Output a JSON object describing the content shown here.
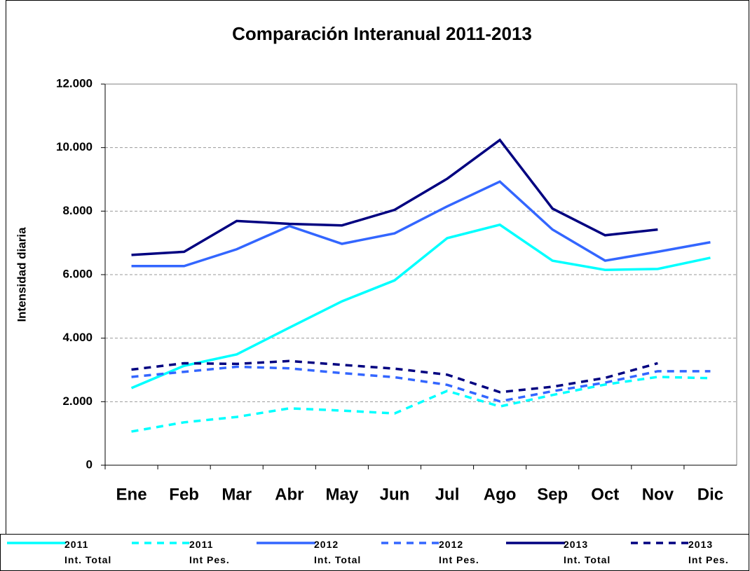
{
  "chart_data": {
    "type": "line",
    "title": "Comparación Interanual 2011-2013",
    "y_label": "Intensidad diaria",
    "categories": [
      "Ene",
      "Feb",
      "Mar",
      "Abr",
      "May",
      "Jun",
      "Jul",
      "Ago",
      "Sep",
      "Oct",
      "Nov",
      "Dic"
    ],
    "ylim": [
      0,
      12000
    ],
    "yticks": [
      0,
      {
        "value": 2000,
        "label": "2.000"
      },
      {
        "value": 4000,
        "label": "4.000"
      },
      {
        "value": 6000,
        "label": "6.000"
      },
      {
        "value": 8000,
        "label": "8.000"
      },
      {
        "value": 10000,
        "label": "10.000"
      },
      {
        "value": 12000,
        "label": "12.000"
      }
    ],
    "grid": true,
    "legend": "bottom",
    "series": [
      {
        "name": "2011\nInt. Total",
        "color": "#00ffff",
        "dashed": false,
        "values": [
          2430,
          3130,
          3490,
          4330,
          5160,
          5820,
          7150,
          7570,
          6440,
          6150,
          6180,
          6530
        ]
      },
      {
        "name": "2011\nInt Pes.",
        "color": "#00ffff",
        "dashed": true,
        "values": [
          1060,
          1350,
          1520,
          1790,
          1720,
          1630,
          2340,
          1850,
          2210,
          2540,
          2780,
          2740
        ]
      },
      {
        "name": "2012\nInt. Total",
        "color": "#3366ff",
        "dashed": false,
        "values": [
          6270,
          6270,
          6800,
          7530,
          6970,
          7300,
          8150,
          8930,
          7420,
          6440,
          6720,
          7020
        ]
      },
      {
        "name": "2012\nInt Pes.",
        "color": "#3366ff",
        "dashed": true,
        "values": [
          2780,
          2940,
          3100,
          3050,
          2900,
          2770,
          2530,
          2010,
          2330,
          2600,
          2960,
          2960
        ]
      },
      {
        "name": "2013\nInt. Total",
        "color": "#000080",
        "dashed": false,
        "values": [
          6620,
          6720,
          7690,
          7600,
          7550,
          8040,
          9020,
          10240,
          8080,
          7240,
          7420,
          null
        ]
      },
      {
        "name": "2013\nInt Pes.",
        "color": "#000080",
        "dashed": true,
        "values": [
          3010,
          3210,
          3190,
          3280,
          3160,
          3040,
          2850,
          2300,
          2470,
          2750,
          3210,
          null
        ]
      }
    ]
  }
}
